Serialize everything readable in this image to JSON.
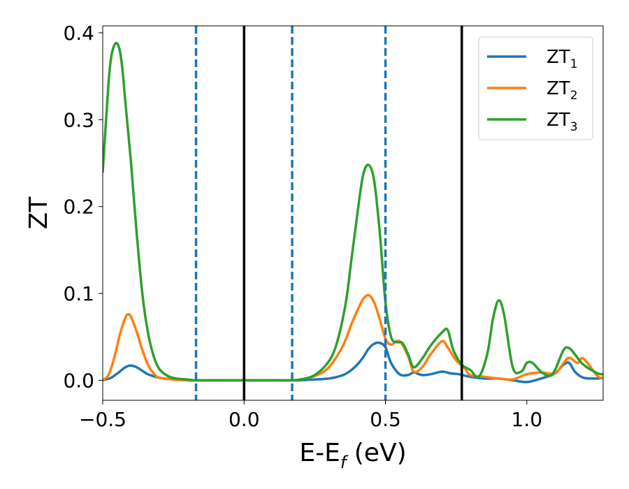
{
  "chart_data": {
    "type": "line",
    "title": "",
    "xlabel": {
      "main": "E-E",
      "sub": "f",
      "unit": " (eV)"
    },
    "ylabel": "ZT",
    "xlim": [
      -0.5,
      1.27
    ],
    "ylim": [
      -0.023,
      0.408
    ],
    "xticks": [
      -0.5,
      0.0,
      0.5,
      1.0
    ],
    "xtick_labels": [
      "−0.5",
      "0.0",
      "0.5",
      "1.0"
    ],
    "yticks": [
      0.0,
      0.1,
      0.2,
      0.3,
      0.4
    ],
    "ytick_labels": [
      "0.0",
      "0.1",
      "0.2",
      "0.3",
      "0.4"
    ],
    "grid": false,
    "legend_position": "top-right",
    "vlines_solid": [
      0.0,
      0.77
    ],
    "vlines_dashed": [
      -0.17,
      0.17,
      0.5
    ],
    "series": [
      {
        "name": "ZT1",
        "label_main": "ZT",
        "label_sub": "1",
        "color": "#1f77b4",
        "x": [
          -0.5,
          -0.47,
          -0.44,
          -0.42,
          -0.4,
          -0.38,
          -0.36,
          -0.34,
          -0.3,
          -0.25,
          -0.2,
          -0.17,
          -0.1,
          0.0,
          0.1,
          0.17,
          0.2,
          0.25,
          0.3,
          0.35,
          0.38,
          0.4,
          0.42,
          0.44,
          0.46,
          0.48,
          0.5,
          0.52,
          0.55,
          0.58,
          0.6,
          0.63,
          0.66,
          0.7,
          0.73,
          0.76,
          0.8,
          0.85,
          0.9,
          0.95,
          1.0,
          1.05,
          1.1,
          1.13,
          1.15,
          1.17,
          1.2,
          1.25,
          1.27
        ],
        "y": [
          0.0,
          0.003,
          0.01,
          0.015,
          0.017,
          0.015,
          0.011,
          0.007,
          0.003,
          0.001,
          0.0,
          0.0,
          0.0,
          0.0,
          0.0,
          0.0,
          0.0,
          0.001,
          0.002,
          0.006,
          0.012,
          0.018,
          0.026,
          0.036,
          0.042,
          0.043,
          0.038,
          0.02,
          0.007,
          0.006,
          0.009,
          0.006,
          0.007,
          0.01,
          0.008,
          0.007,
          0.004,
          0.002,
          0.002,
          0.0,
          -0.002,
          0.002,
          0.008,
          0.018,
          0.02,
          0.01,
          0.003,
          0.002,
          0.003
        ]
      },
      {
        "name": "ZT2",
        "label_main": "ZT",
        "label_sub": "2",
        "color": "#ff7f0e",
        "x": [
          -0.5,
          -0.48,
          -0.46,
          -0.44,
          -0.42,
          -0.41,
          -0.4,
          -0.38,
          -0.36,
          -0.34,
          -0.32,
          -0.3,
          -0.25,
          -0.2,
          -0.17,
          -0.1,
          0.0,
          0.1,
          0.17,
          0.2,
          0.25,
          0.3,
          0.35,
          0.38,
          0.4,
          0.42,
          0.44,
          0.46,
          0.48,
          0.5,
          0.52,
          0.55,
          0.58,
          0.6,
          0.63,
          0.66,
          0.7,
          0.72,
          0.75,
          0.78,
          0.8,
          0.85,
          0.9,
          0.95,
          1.0,
          1.05,
          1.1,
          1.13,
          1.15,
          1.18,
          1.2,
          1.25,
          1.27
        ],
        "y": [
          0.0,
          0.006,
          0.025,
          0.052,
          0.072,
          0.076,
          0.073,
          0.056,
          0.035,
          0.018,
          0.008,
          0.003,
          0.001,
          0.0,
          0.0,
          0.0,
          0.0,
          0.0,
          0.0,
          0.001,
          0.005,
          0.015,
          0.04,
          0.065,
          0.08,
          0.093,
          0.098,
          0.09,
          0.07,
          0.048,
          0.041,
          0.045,
          0.028,
          0.01,
          0.015,
          0.03,
          0.045,
          0.038,
          0.023,
          0.014,
          0.006,
          0.004,
          0.002,
          0.001,
          0.007,
          0.009,
          0.008,
          0.02,
          0.026,
          0.02,
          0.025,
          0.005,
          0.003
        ]
      },
      {
        "name": "ZT3",
        "label_main": "ZT",
        "label_sub": "3",
        "color": "#2ca02c",
        "x": [
          -0.5,
          -0.48,
          -0.47,
          -0.46,
          -0.45,
          -0.44,
          -0.43,
          -0.42,
          -0.4,
          -0.38,
          -0.36,
          -0.34,
          -0.32,
          -0.3,
          -0.27,
          -0.24,
          -0.2,
          -0.17,
          -0.1,
          0.0,
          0.1,
          0.17,
          0.2,
          0.25,
          0.3,
          0.33,
          0.36,
          0.38,
          0.4,
          0.42,
          0.44,
          0.46,
          0.48,
          0.5,
          0.52,
          0.54,
          0.56,
          0.58,
          0.6,
          0.63,
          0.66,
          0.7,
          0.72,
          0.74,
          0.77,
          0.8,
          0.83,
          0.86,
          0.88,
          0.9,
          0.92,
          0.95,
          0.98,
          1.0,
          1.02,
          1.05,
          1.08,
          1.1,
          1.13,
          1.15,
          1.17,
          1.2,
          1.25,
          1.27
        ],
        "y": [
          0.24,
          0.34,
          0.372,
          0.385,
          0.388,
          0.38,
          0.357,
          0.32,
          0.25,
          0.17,
          0.1,
          0.055,
          0.028,
          0.013,
          0.005,
          0.002,
          0.001,
          0.0,
          0.0,
          0.0,
          0.0,
          0.0,
          0.001,
          0.006,
          0.022,
          0.045,
          0.09,
          0.14,
          0.19,
          0.235,
          0.248,
          0.23,
          0.17,
          0.09,
          0.05,
          0.044,
          0.043,
          0.03,
          0.015,
          0.025,
          0.04,
          0.055,
          0.058,
          0.035,
          0.018,
          0.012,
          0.004,
          0.03,
          0.07,
          0.092,
          0.075,
          0.015,
          0.01,
          0.02,
          0.02,
          0.01,
          0.005,
          0.012,
          0.035,
          0.037,
          0.03,
          0.018,
          0.008,
          0.007
        ]
      }
    ]
  }
}
